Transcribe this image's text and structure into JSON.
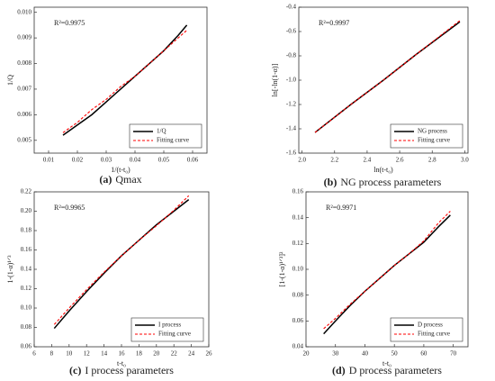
{
  "chart_data": [
    {
      "type": "line",
      "caption_label": "(a)",
      "caption": "Qmax",
      "annotation": "R²=0.9975",
      "xlabel": "1/(t-t₀)",
      "ylabel": "1/Q",
      "x": [
        0.015,
        0.02,
        0.025,
        0.03,
        0.035,
        0.04,
        0.045,
        0.05,
        0.055,
        0.058
      ],
      "series": [
        {
          "name": "1/Q",
          "color": "#000000",
          "style": "solid",
          "values": [
            0.0052,
            0.0056,
            0.006,
            0.0065,
            0.007,
            0.0075,
            0.008,
            0.0085,
            0.0091,
            0.0095
          ]
        },
        {
          "name": "Fitting curve",
          "color": "#ff0000",
          "style": "dashed",
          "values": [
            0.0053,
            0.0057,
            0.0062,
            0.0066,
            0.0071,
            0.0075,
            0.008,
            0.0085,
            0.009,
            0.0093
          ]
        }
      ],
      "xlim": [
        0.005,
        0.065
      ],
      "xticks": [
        0.01,
        0.02,
        0.03,
        0.04,
        0.05,
        0.06
      ],
      "ylim": [
        0.0045,
        0.0102
      ],
      "yticks": [
        0.005,
        0.006,
        0.007,
        0.008,
        0.009,
        {
          "value": 0.01,
          "label": "0.010"
        }
      ],
      "legend": "lower right"
    },
    {
      "type": "line",
      "caption_label": "(b)",
      "caption": "NG process parameters",
      "annotation": "R²=0.9997",
      "xlabel": "ln(t-t₀)",
      "ylabel": "ln[-ln(1-α)]",
      "x": [
        2.08,
        2.3,
        2.5,
        2.7,
        2.97
      ],
      "series": [
        {
          "name": "NG process",
          "color": "#000000",
          "style": "solid",
          "values": [
            -1.43,
            -1.2,
            -1.0,
            -0.79,
            -0.52
          ]
        },
        {
          "name": "Fitting curve",
          "color": "#ff0000",
          "style": "dashed",
          "values": [
            -1.43,
            -1.2,
            -1.0,
            -0.79,
            -0.51
          ]
        }
      ],
      "xlim": [
        1.98,
        3.02
      ],
      "xticks": [
        {
          "value": 2,
          "label": "2.0"
        },
        2.2,
        2.4,
        2.6,
        2.8,
        {
          "value": 3,
          "label": "3.0"
        }
      ],
      "ylim": [
        -1.6,
        -0.4
      ],
      "yticks": [
        -0.4,
        -0.6,
        -0.8,
        {
          "value": -1,
          "label": "-1.0"
        },
        -1.2,
        -1.4,
        -1.6
      ],
      "legend": "lower right"
    },
    {
      "type": "line",
      "caption_label": "(c)",
      "caption": "I process parameters",
      "annotation": "R²=0.9965",
      "xlabel": "t-t₀",
      "ylabel": "1-(1-α)¹ᐟ³",
      "x": [
        8.3,
        10,
        12,
        14,
        16,
        18,
        20,
        22,
        23.7
      ],
      "series": [
        {
          "name": "I process",
          "color": "#000000",
          "style": "solid",
          "values": [
            0.079,
            0.097,
            0.117,
            0.136,
            0.154,
            0.17,
            0.186,
            0.2,
            0.212
          ]
        },
        {
          "name": "Fitting curve",
          "color": "#ff0000",
          "style": "dashed",
          "values": [
            0.083,
            0.1,
            0.119,
            0.137,
            0.154,
            0.17,
            0.185,
            0.201,
            0.216
          ]
        }
      ],
      "xlim": [
        6,
        26
      ],
      "xticks": [
        6,
        8,
        10,
        12,
        14,
        16,
        18,
        20,
        22,
        24,
        26
      ],
      "ylim": [
        0.06,
        0.22
      ],
      "yticks": [
        0.06,
        0.08,
        {
          "value": 0.1,
          "label": "0.10"
        },
        0.12,
        0.14,
        0.16,
        0.18,
        {
          "value": 0.2,
          "label": "0.20"
        },
        0.22
      ],
      "legend": "lower right"
    },
    {
      "type": "line",
      "caption_label": "(d)",
      "caption": "D process parameters",
      "annotation": "R²=0.9971",
      "xlabel": "t-t₀",
      "ylabel": "[1-(1-α)¹ᐟ³]²",
      "x": [
        26,
        30,
        35,
        40,
        45,
        50,
        55,
        60,
        65,
        69
      ],
      "series": [
        {
          "name": "D process",
          "color": "#000000",
          "style": "solid",
          "values": [
            0.05,
            0.06,
            0.072,
            0.083,
            0.093,
            0.103,
            0.112,
            0.121,
            0.133,
            0.142
          ]
        },
        {
          "name": "Fitting curve",
          "color": "#ff0000",
          "style": "dashed",
          "values": [
            0.054,
            0.062,
            0.073,
            0.083,
            0.093,
            0.103,
            0.112,
            0.122,
            0.136,
            0.145
          ]
        }
      ],
      "xlim": [
        20,
        75
      ],
      "xticks": [
        20,
        30,
        40,
        50,
        60,
        70
      ],
      "ylim": [
        0.04,
        0.16
      ],
      "yticks": [
        0.04,
        0.06,
        0.08,
        {
          "value": 0.1,
          "label": "0.10"
        },
        0.12,
        0.14,
        0.16
      ],
      "legend": "lower right"
    }
  ]
}
